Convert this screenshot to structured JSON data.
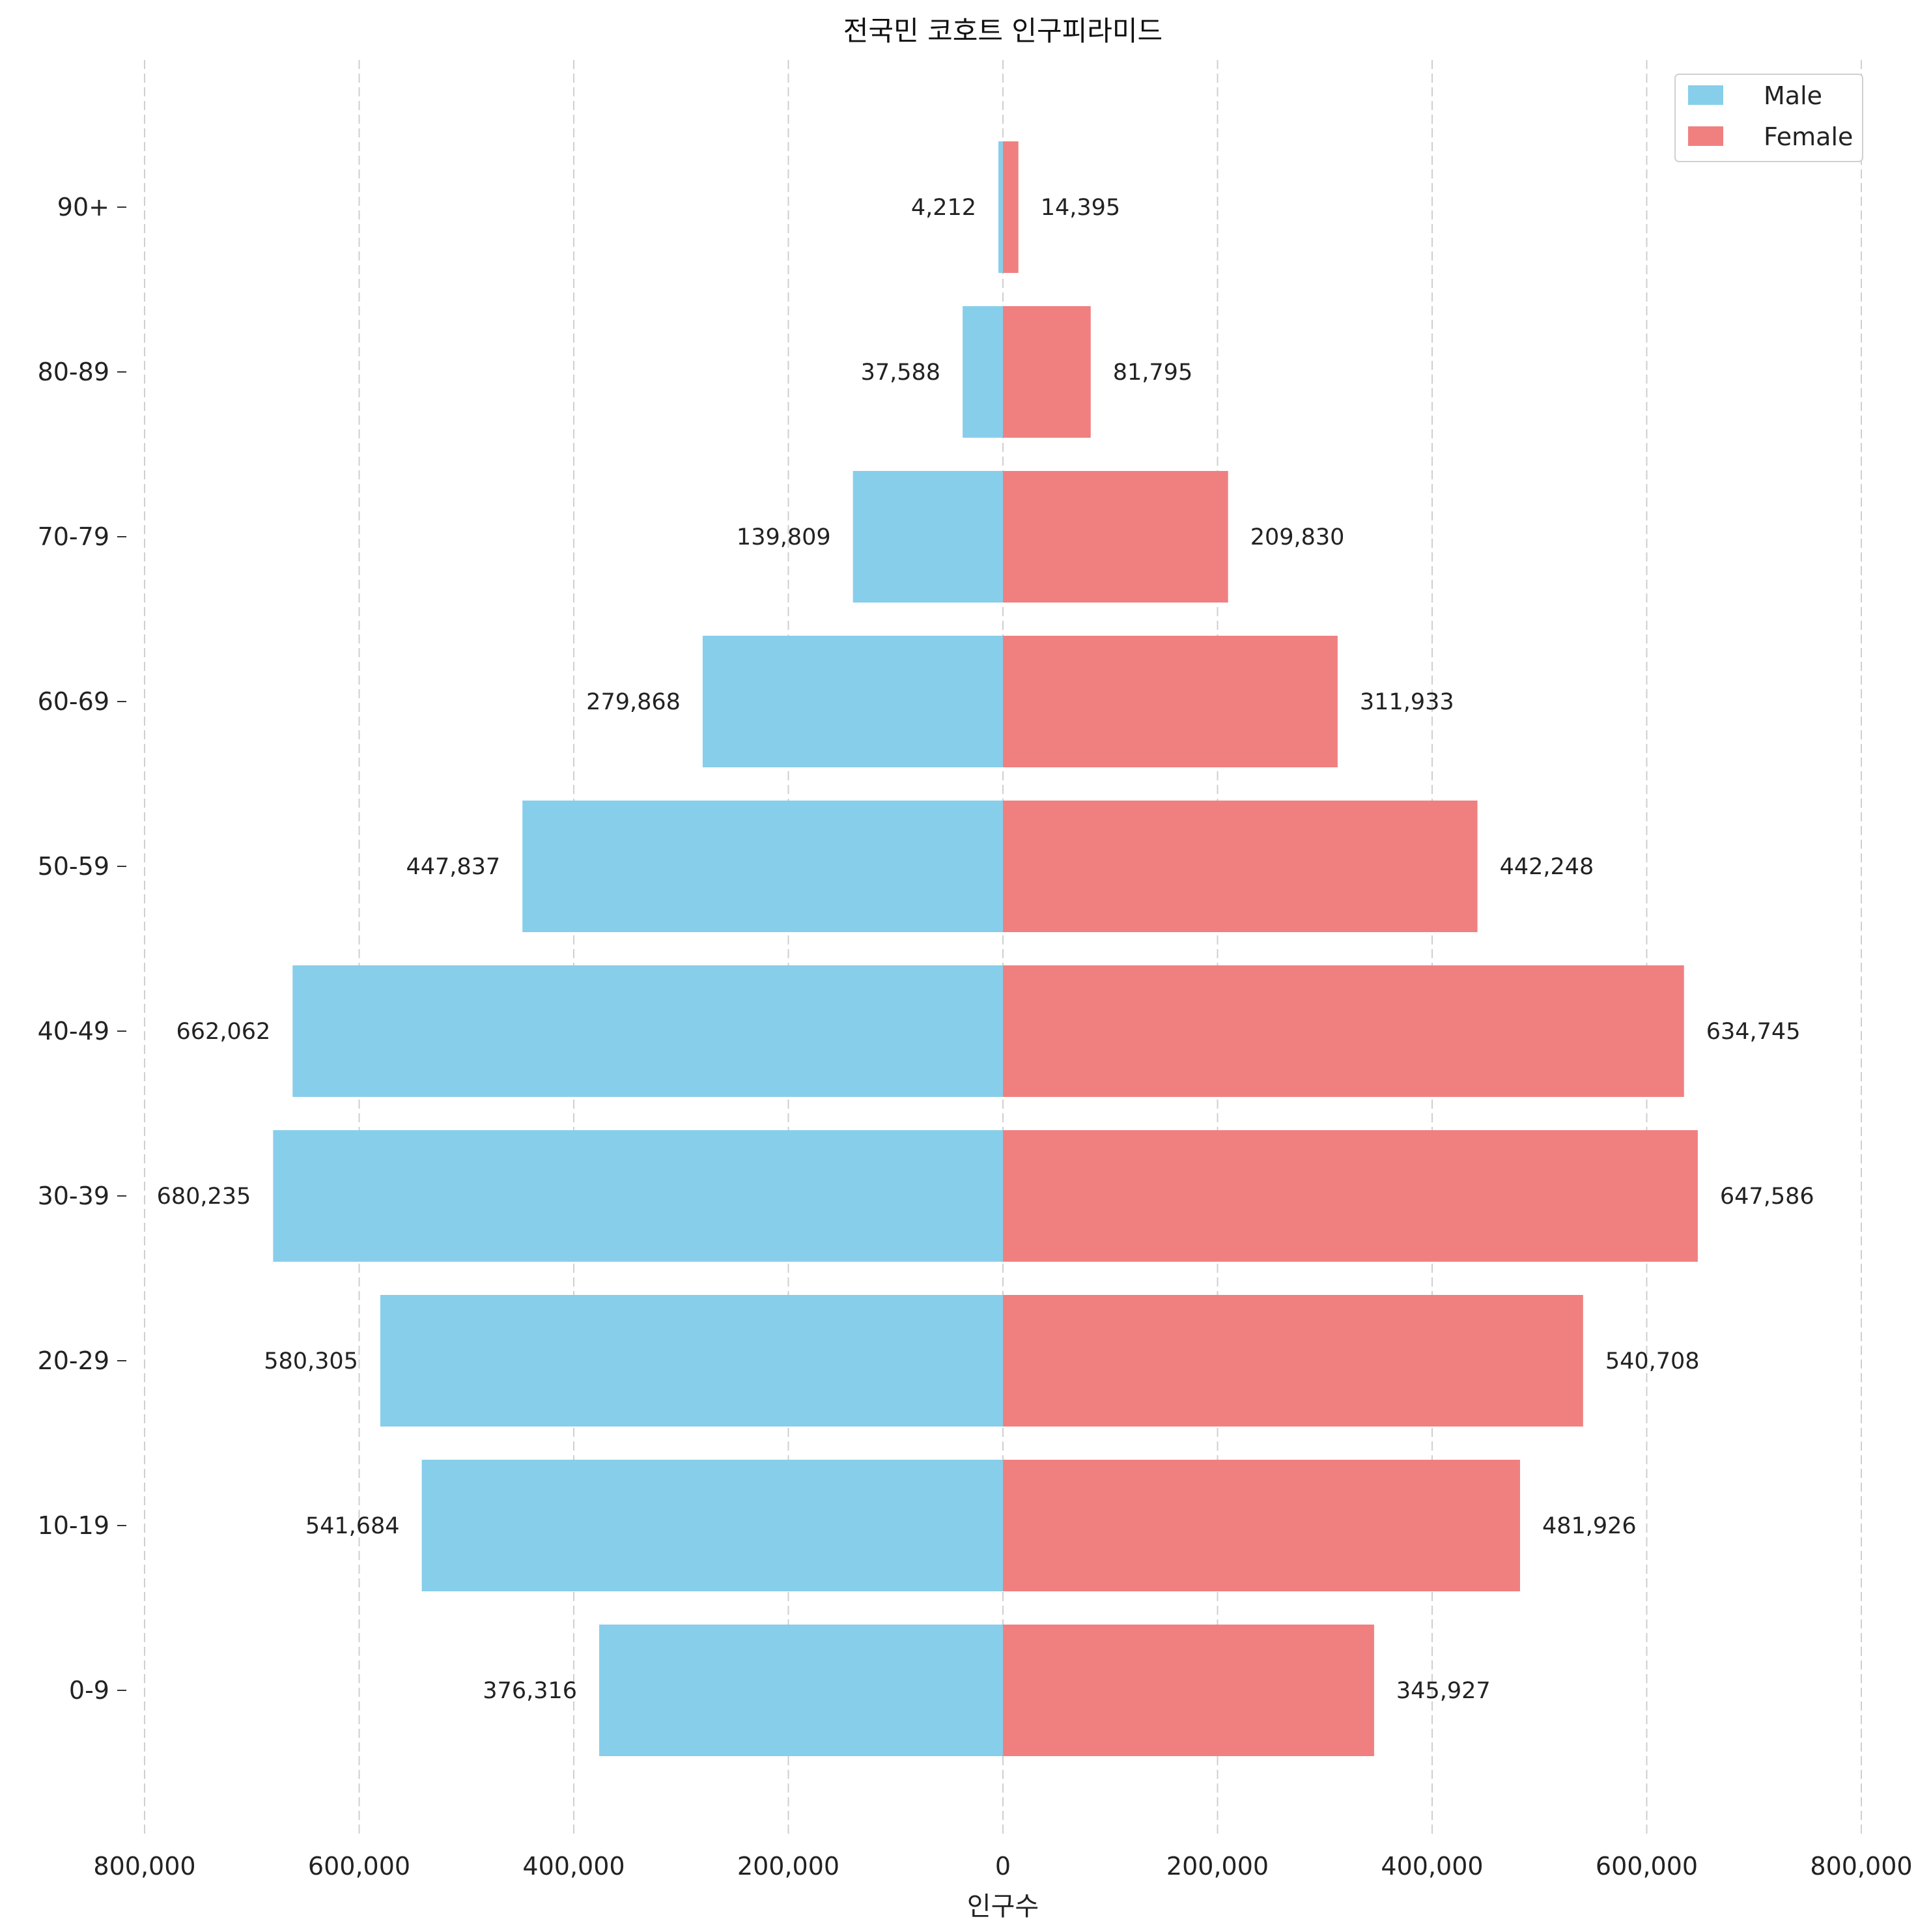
{
  "chart_data": {
    "type": "bar",
    "orientation": "horizontal",
    "title": "전국민 코호트 인구피라미드",
    "xlabel": "인구수",
    "ylabel": "",
    "xlim": [
      -800000,
      800000
    ],
    "x_ticks": [
      -800000,
      -600000,
      -400000,
      -200000,
      0,
      200000,
      400000,
      600000,
      800000
    ],
    "x_tick_labels": [
      "800,000",
      "600,000",
      "400,000",
      "200,000",
      "0",
      "200,000",
      "400,000",
      "600,000",
      "800,000"
    ],
    "categories": [
      "0-9",
      "10-19",
      "20-29",
      "30-39",
      "40-49",
      "50-59",
      "60-69",
      "70-79",
      "80-89",
      "90+"
    ],
    "series": [
      {
        "name": "Male",
        "color": "#87CEEB",
        "values": [
          376316,
          541684,
          580305,
          680235,
          662062,
          447837,
          279868,
          139809,
          37588,
          4212
        ],
        "labels": [
          "376,316",
          "541,684",
          "580,305",
          "680,235",
          "662,062",
          "447,837",
          "279,868",
          "139,809",
          "37,588",
          "4,212"
        ]
      },
      {
        "name": "Female",
        "color": "#F08080",
        "values": [
          345927,
          481926,
          540708,
          647586,
          634745,
          442248,
          311933,
          209830,
          81795,
          14395
        ],
        "labels": [
          "345,927",
          "481,926",
          "540,708",
          "647,586",
          "634,745",
          "442,248",
          "311,933",
          "209,830",
          "81,795",
          "14,395"
        ]
      }
    ],
    "grid": "x",
    "legend_position": "top-right"
  }
}
